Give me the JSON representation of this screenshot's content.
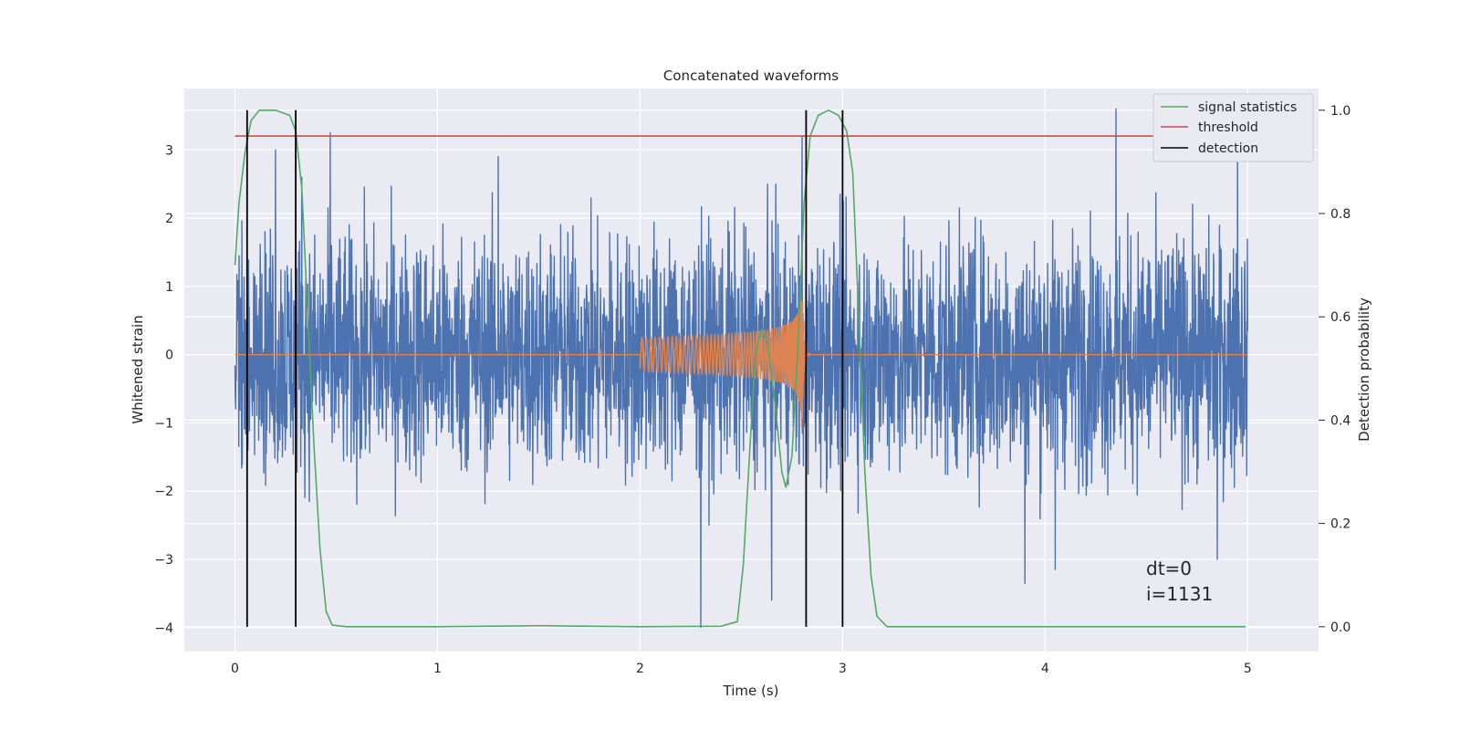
{
  "chart_data": {
    "type": "line",
    "title": "Concatenated waveforms",
    "xlabel": "Time (s)",
    "ylabel": "Whitened strain",
    "ylabel_right": "Detection probability",
    "xlim": [
      -0.25,
      5.35
    ],
    "ylim": [
      -4.35,
      3.9
    ],
    "ylim_right": [
      -0.048,
      1.042
    ],
    "x_ticks": [
      0,
      1,
      2,
      3,
      4,
      5
    ],
    "y_ticks": [
      -4,
      -3,
      -2,
      -1,
      0,
      1,
      2,
      3
    ],
    "y_ticks_right": [
      0.0,
      0.2,
      0.4,
      0.6,
      0.8,
      1.0
    ],
    "x_tick_labels": [
      "0",
      "1",
      "2",
      "3",
      "4",
      "5"
    ],
    "y_tick_labels": [
      "−4",
      "−3",
      "−2",
      "−1",
      "0",
      "1",
      "2",
      "3"
    ],
    "y_tick_labels_right": [
      "0.0",
      "0.2",
      "0.4",
      "0.6",
      "0.8",
      "1.0"
    ],
    "grid": true,
    "legend_position": "top-right",
    "series": [
      {
        "name": "signal statistics",
        "axis": "right",
        "color": "#55a868",
        "points": [
          [
            0.0,
            0.7
          ],
          [
            0.02,
            0.82
          ],
          [
            0.05,
            0.92
          ],
          [
            0.08,
            0.98
          ],
          [
            0.12,
            1.0
          ],
          [
            0.2,
            1.0
          ],
          [
            0.27,
            0.99
          ],
          [
            0.3,
            0.96
          ],
          [
            0.33,
            0.85
          ],
          [
            0.36,
            0.6
          ],
          [
            0.39,
            0.35
          ],
          [
            0.42,
            0.15
          ],
          [
            0.45,
            0.03
          ],
          [
            0.48,
            0.003
          ],
          [
            0.55,
            0.0
          ],
          [
            1.0,
            0.0
          ],
          [
            1.5,
            0.002
          ],
          [
            2.0,
            0.0
          ],
          [
            2.4,
            0.001
          ],
          [
            2.48,
            0.01
          ],
          [
            2.51,
            0.12
          ],
          [
            2.54,
            0.33
          ],
          [
            2.57,
            0.53
          ],
          [
            2.6,
            0.575
          ],
          [
            2.63,
            0.55
          ],
          [
            2.67,
            0.42
          ],
          [
            2.7,
            0.3
          ],
          [
            2.72,
            0.27
          ],
          [
            2.75,
            0.33
          ],
          [
            2.78,
            0.55
          ],
          [
            2.81,
            0.82
          ],
          [
            2.84,
            0.95
          ],
          [
            2.88,
            0.99
          ],
          [
            2.93,
            1.0
          ],
          [
            2.98,
            0.99
          ],
          [
            3.02,
            0.96
          ],
          [
            3.05,
            0.88
          ],
          [
            3.08,
            0.6
          ],
          [
            3.11,
            0.3
          ],
          [
            3.14,
            0.1
          ],
          [
            3.17,
            0.02
          ],
          [
            3.22,
            0.0
          ],
          [
            4.0,
            0.0
          ],
          [
            4.99,
            0.0
          ]
        ]
      },
      {
        "name": "threshold",
        "axis": "right",
        "color": "#c44e52",
        "points": [
          [
            0.0,
            0.95
          ],
          [
            5.1,
            0.95
          ]
        ]
      },
      {
        "name": "detection",
        "axis": "right",
        "color": "#000000",
        "vlines": [
          0.06,
          0.3,
          2.82,
          3.0
        ],
        "vline_range": [
          0.0,
          1.0
        ]
      }
    ],
    "noise": {
      "axis": "left",
      "color": "#4c72b0",
      "x_range": [
        0.0,
        5.0
      ],
      "typical_amplitude": [
        -2.3,
        2.3
      ],
      "peaks": [
        [
          0.2,
          3.0
        ],
        [
          0.33,
          2.6
        ],
        [
          0.47,
          3.25
        ],
        [
          1.3,
          2.9
        ],
        [
          2.8,
          3.2
        ],
        [
          4.35,
          3.6
        ],
        [
          4.95,
          3.2
        ],
        [
          2.3,
          -4.0
        ],
        [
          2.65,
          -3.6
        ],
        [
          3.9,
          -3.35
        ],
        [
          4.05,
          -3.15
        ],
        [
          4.85,
          -3.0
        ]
      ]
    },
    "injected_chirp": {
      "axis": "left",
      "color": "#dd8452",
      "start": 2.0,
      "merger": 2.8,
      "initial_amplitude": 0.25,
      "peak_amplitude": 1.15
    },
    "annotations": [
      "dt=0",
      "i=1131"
    ]
  }
}
